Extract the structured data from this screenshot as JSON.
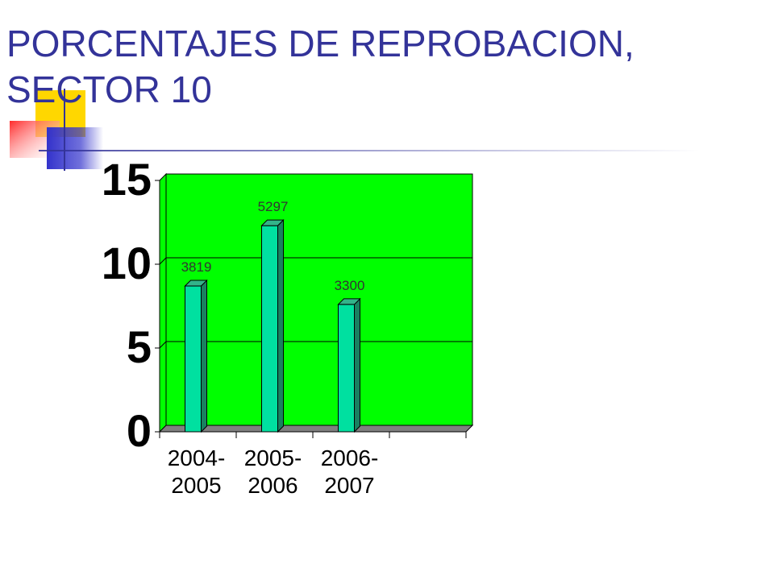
{
  "slide": {
    "title": "PORCENTAJES DE REPROBACION,\nSECTOR 10",
    "accent_color": "#333399"
  },
  "decoration": {
    "icon": "overlapping-squares-icon",
    "colors": [
      "#ffd700",
      "#ff3b3b",
      "#3333cc"
    ]
  },
  "chart_data": {
    "type": "bar",
    "categories": [
      "2004-\n2005",
      "2005-\n2006",
      "2006-\n2007"
    ],
    "values": [
      8.7,
      12.3,
      7.6
    ],
    "data_labels": [
      "3819",
      "5297",
      "3300"
    ],
    "title": "",
    "xlabel": "",
    "ylabel": "",
    "ylim": [
      0,
      15
    ],
    "yticks": [
      "0",
      "5",
      "10",
      "15"
    ],
    "grid": true,
    "three_d": true,
    "colors": {
      "plot_area": "#00ff00",
      "bar_face": "#00e0a0",
      "bar_top": "#33b38a",
      "bar_side": "#1a8060",
      "floor": "#808080",
      "gridline": "#000000"
    }
  }
}
